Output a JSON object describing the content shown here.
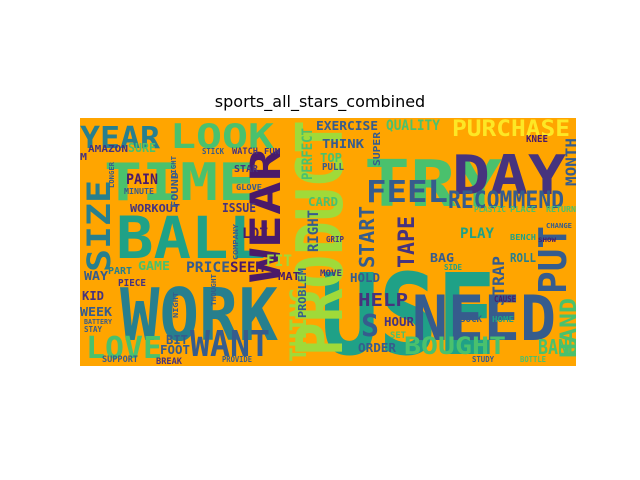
{
  "title": "sports_all_stars_combined",
  "colors": {
    "background": "#FFA500",
    "palette": {
      "purple": "#4A1A6A",
      "indigo": "#46337E",
      "blue": "#365C8D",
      "teal": "#277F8E",
      "green": "#1FA187",
      "lightgreen": "#4AC16D",
      "lime": "#A0DA39",
      "yellow": "#FDE725"
    }
  },
  "words": [
    {
      "text": "USE",
      "color": "green"
    },
    {
      "text": "PRODUCT",
      "color": "lime"
    },
    {
      "text": "WORK",
      "color": "teal"
    },
    {
      "text": "BALL",
      "color": "green"
    },
    {
      "text": "TIME",
      "color": "lightgreen"
    },
    {
      "text": "TRY",
      "color": "lightgreen"
    },
    {
      "text": "NEED",
      "color": "blue"
    },
    {
      "text": "DAY",
      "color": "indigo"
    },
    {
      "text": "WEAR",
      "color": "purple"
    },
    {
      "text": "LOOK",
      "color": "lightgreen"
    },
    {
      "text": "YEAR",
      "color": "teal"
    },
    {
      "text": "SIZE",
      "color": "teal"
    },
    {
      "text": "FEEL",
      "color": "blue"
    },
    {
      "text": "WANT",
      "color": "blue"
    },
    {
      "text": "LOVE",
      "color": "lightgreen"
    },
    {
      "text": "PUT",
      "color": "blue"
    },
    {
      "text": "RECOMMEND",
      "color": "blue"
    },
    {
      "text": "BOUGHT",
      "color": "lightgreen"
    },
    {
      "text": "PURCHASE",
      "color": "yellow"
    },
    {
      "text": "HAND",
      "color": "lightgreen"
    },
    {
      "text": "START",
      "color": "blue"
    },
    {
      "text": "THING",
      "color": "lime"
    },
    {
      "text": "HELP",
      "color": "indigo"
    },
    {
      "text": "TAPE",
      "color": "indigo"
    },
    {
      "text": "FIT",
      "color": "lime"
    },
    {
      "text": "BAND",
      "color": "lightgreen"
    },
    {
      "text": "S",
      "color": "blue"
    },
    {
      "text": "STRAP",
      "color": "blue"
    },
    {
      "text": "MONTH",
      "color": "blue"
    },
    {
      "text": "PRICE",
      "color": "blue"
    },
    {
      "text": "SEEM",
      "color": "purple"
    },
    {
      "text": "RIGHT",
      "color": "blue"
    },
    {
      "text": "PERFECT",
      "color": "lightgreen"
    },
    {
      "text": "QUALITY",
      "color": "lightgreen"
    },
    {
      "text": "EXERCISE",
      "color": "blue"
    },
    {
      "text": "THINK",
      "color": "blue"
    },
    {
      "text": "GAME",
      "color": "lightgreen"
    },
    {
      "text": "LOT",
      "color": "purple"
    },
    {
      "text": "WORKOUT",
      "color": "indigo"
    },
    {
      "text": "ISSUE",
      "color": "indigo"
    },
    {
      "text": "PAIN",
      "color": "purple"
    },
    {
      "text": "HOLD",
      "color": "blue"
    },
    {
      "text": "ORDER",
      "color": "blue"
    },
    {
      "text": "PLAY",
      "color": "green"
    },
    {
      "text": "BAG",
      "color": "blue"
    },
    {
      "text": "ROLL",
      "color": "teal"
    },
    {
      "text": "WEEK",
      "color": "blue"
    },
    {
      "text": "WAY",
      "color": "blue"
    },
    {
      "text": "KID",
      "color": "indigo"
    },
    {
      "text": "HOUR",
      "color": "indigo"
    },
    {
      "text": "FOOT",
      "color": "blue"
    },
    {
      "text": "BIT",
      "color": "blue"
    },
    {
      "text": "CARD",
      "color": "lightgreen"
    },
    {
      "text": "TOP",
      "color": "lightgreen"
    },
    {
      "text": "PROBLEM",
      "color": "blue"
    },
    {
      "text": "MAT",
      "color": "purple"
    },
    {
      "text": "SUPER",
      "color": "blue"
    },
    {
      "text": "PULL",
      "color": "blue"
    },
    {
      "text": "AMAZON",
      "color": "indigo"
    },
    {
      "text": "SURE",
      "color": "lightgreen"
    },
    {
      "text": "FOUND",
      "color": "blue"
    },
    {
      "text": "PART",
      "color": "teal"
    },
    {
      "text": "PIECE",
      "color": "indigo"
    },
    {
      "text": "MOVE",
      "color": "indigo"
    },
    {
      "text": "GRIP",
      "color": "indigo"
    },
    {
      "text": "STAR",
      "color": "indigo"
    },
    {
      "text": "GLOVE",
      "color": "blue"
    },
    {
      "text": "FUN",
      "color": "indigo"
    },
    {
      "text": "WATCH",
      "color": "indigo"
    },
    {
      "text": "STICK",
      "color": "blue"
    },
    {
      "text": "KNEE",
      "color": "purple"
    },
    {
      "text": "M",
      "color": "indigo"
    },
    {
      "text": "MINUTE",
      "color": "blue"
    },
    {
      "text": "SUPPORT",
      "color": "blue"
    },
    {
      "text": "BREAK",
      "color": "indigo"
    },
    {
      "text": "PROVIDE",
      "color": "blue"
    },
    {
      "text": "SOCK",
      "color": "blue"
    },
    {
      "text": "HOME",
      "color": "green"
    },
    {
      "text": "CAUSE",
      "color": "purple"
    },
    {
      "text": "PLACE",
      "color": "lightgreen"
    },
    {
      "text": "PLASTIC",
      "color": "lightgreen"
    },
    {
      "text": "BENCH",
      "color": "green"
    },
    {
      "text": "CHANGE",
      "color": "blue"
    },
    {
      "text": "RETURN",
      "color": "lightgreen"
    },
    {
      "text": "BOTTLE",
      "color": "lightgreen"
    },
    {
      "text": "STUDY",
      "color": "blue"
    },
    {
      "text": "SET",
      "color": "lightgreen"
    },
    {
      "text": "SIDE",
      "color": "green"
    },
    {
      "text": "COMPANY",
      "color": "blue"
    },
    {
      "text": "NIGHT",
      "color": "blue"
    },
    {
      "text": "LIGHT",
      "color": "blue"
    },
    {
      "text": "THOUGHT",
      "color": "blue"
    },
    {
      "text": "BATTERY",
      "color": "blue"
    },
    {
      "text": "LONGER",
      "color": "blue"
    },
    {
      "text": "SHOW",
      "color": "purple"
    },
    {
      "text": "STAY",
      "color": "blue"
    }
  ]
}
